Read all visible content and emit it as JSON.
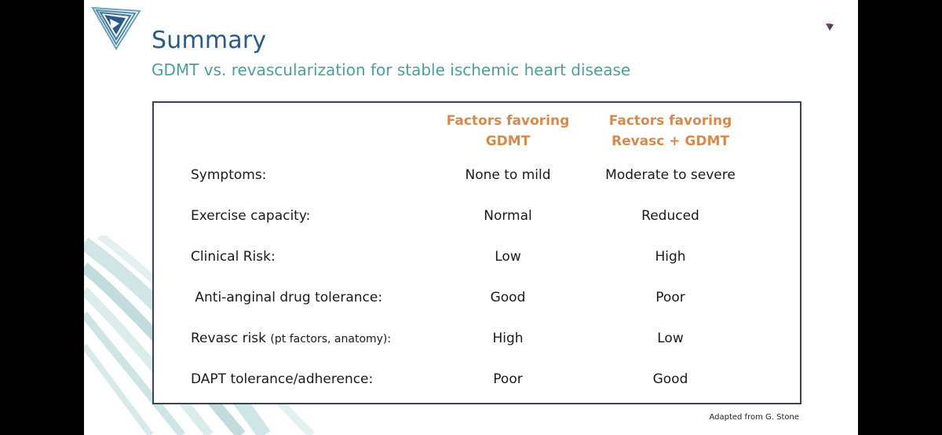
{
  "slide": {
    "title": "Summary",
    "subtitle": "GDMT vs. revascularization for stable ischemic heart disease",
    "credit": "Adapted from G. Stone"
  },
  "table": {
    "headers": [
      [
        "Factors favoring",
        "GDMT"
      ],
      [
        "Factors favoring",
        "Revasc + GDMT"
      ]
    ],
    "rows": [
      {
        "label": "Symptoms:",
        "label_note": "",
        "gdmt": "None to mild",
        "revasc": "Moderate to severe"
      },
      {
        "label": "Exercise capacity:",
        "label_note": "",
        "gdmt": "Normal",
        "revasc": "Reduced"
      },
      {
        "label": "Clinical Risk:",
        "label_note": "",
        "gdmt": "Low",
        "revasc": "High"
      },
      {
        "label": " Anti-anginal drug tolerance:",
        "label_note": "",
        "gdmt": "Good",
        "revasc": "Poor"
      },
      {
        "label": "Revasc risk ",
        "label_note": "(pt factors, anatomy):",
        "gdmt": "High",
        "revasc": "Low"
      },
      {
        "label": "DAPT tolerance/adherence:",
        "label_note": "",
        "gdmt": "Poor",
        "revasc": "Good"
      }
    ]
  },
  "colors": {
    "title": "#2c5a86",
    "subtitle": "#4f9e9a",
    "header": "#d48a4e",
    "border": "#3a4255",
    "background": "#000000",
    "slide": "#ffffff"
  },
  "icons": {
    "logo": "play-triangle-logo",
    "corner": "small-arrow-icon",
    "decoration": "teal-curved-lines"
  }
}
